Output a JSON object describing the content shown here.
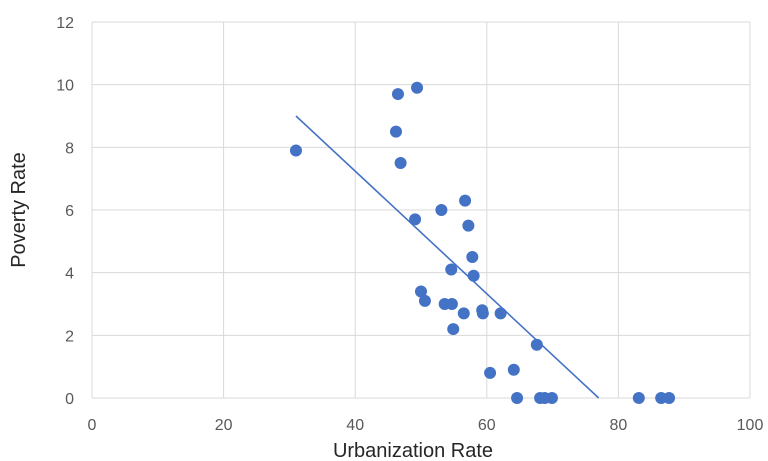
{
  "chart_data": {
    "type": "scatter",
    "xlabel": "Urbanization Rate",
    "ylabel": "Poverty Rate",
    "xlim": [
      0,
      100
    ],
    "ylim": [
      0,
      12
    ],
    "xticks": [
      0,
      20,
      40,
      60,
      80,
      100
    ],
    "yticks": [
      0,
      2,
      4,
      6,
      8,
      10,
      12
    ],
    "grid": true,
    "colors": {
      "points": "#4472c4",
      "trendline": "#4472c4",
      "grid": "#d9d9d9"
    },
    "points": [
      {
        "x": 31,
        "y": 7.9
      },
      {
        "x": 46.2,
        "y": 8.5
      },
      {
        "x": 46.5,
        "y": 9.7
      },
      {
        "x": 46.9,
        "y": 7.5
      },
      {
        "x": 49.4,
        "y": 9.9
      },
      {
        "x": 49.1,
        "y": 5.7
      },
      {
        "x": 50,
        "y": 3.4
      },
      {
        "x": 50.6,
        "y": 3.1
      },
      {
        "x": 53.1,
        "y": 6.0
      },
      {
        "x": 53.6,
        "y": 3.0
      },
      {
        "x": 54.6,
        "y": 4.1
      },
      {
        "x": 54.7,
        "y": 3.0
      },
      {
        "x": 54.9,
        "y": 2.2
      },
      {
        "x": 56.5,
        "y": 2.7
      },
      {
        "x": 56.7,
        "y": 6.3
      },
      {
        "x": 57.2,
        "y": 5.5
      },
      {
        "x": 57.8,
        "y": 4.5
      },
      {
        "x": 58,
        "y": 3.9
      },
      {
        "x": 59.3,
        "y": 2.8
      },
      {
        "x": 59.4,
        "y": 2.7
      },
      {
        "x": 60.5,
        "y": 0.8
      },
      {
        "x": 62.1,
        "y": 2.7
      },
      {
        "x": 64.1,
        "y": 0.9
      },
      {
        "x": 64.6,
        "y": 0.0
      },
      {
        "x": 67.6,
        "y": 1.7
      },
      {
        "x": 68.1,
        "y": 0.0
      },
      {
        "x": 68.8,
        "y": 0.0
      },
      {
        "x": 69.9,
        "y": 0.0
      },
      {
        "x": 83.1,
        "y": 0.0
      },
      {
        "x": 86.5,
        "y": 0.0
      },
      {
        "x": 87.7,
        "y": 0.0
      }
    ],
    "trendline": {
      "x": [
        31,
        77
      ],
      "y": [
        9.0,
        0.0
      ]
    }
  }
}
